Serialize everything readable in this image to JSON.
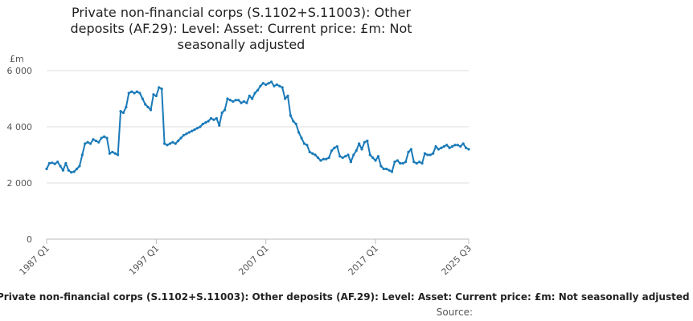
{
  "chart_data": {
    "type": "line",
    "title_lines": [
      "Private non-financial corps (S.1102+S.11003): Other",
      "deposits (AF.29): Level: Asset: Current price: £m: Not",
      "seasonally adjusted"
    ],
    "ylabel": "£m",
    "ylim": [
      0,
      6000
    ],
    "yticks": [
      0,
      2000,
      4000,
      6000
    ],
    "ytick_labels": [
      "0",
      "2 000",
      "4 000",
      "6 000"
    ],
    "xlim": [
      1987.0,
      2025.5
    ],
    "xticks": [
      1987.0,
      1997.0,
      2007.0,
      2017.0,
      2025.5
    ],
    "xtick_labels": [
      "1987 Q1",
      "1997 Q1",
      "2007 Q1",
      "2017 Q1",
      "2025 Q3"
    ],
    "grid": true,
    "legend": "bottom",
    "series": [
      {
        "name": "Private non-financial corps (S.1102+S.11003): Other deposits (AF.29): Level: Asset: Current price: £m: Not seasonally adjusted",
        "color": "#1a7ab8",
        "points": [
          [
            1987.0,
            2500
          ],
          [
            1987.25,
            2700
          ],
          [
            1987.5,
            2720
          ],
          [
            1987.75,
            2680
          ],
          [
            1988.0,
            2750
          ],
          [
            1988.25,
            2600
          ],
          [
            1988.5,
            2450
          ],
          [
            1988.75,
            2700
          ],
          [
            1989.0,
            2450
          ],
          [
            1989.25,
            2380
          ],
          [
            1989.5,
            2400
          ],
          [
            1989.75,
            2500
          ],
          [
            1990.0,
            2600
          ],
          [
            1990.25,
            3000
          ],
          [
            1990.5,
            3400
          ],
          [
            1990.75,
            3450
          ],
          [
            1991.0,
            3400
          ],
          [
            1991.25,
            3550
          ],
          [
            1991.5,
            3500
          ],
          [
            1991.75,
            3450
          ],
          [
            1992.0,
            3600
          ],
          [
            1992.25,
            3650
          ],
          [
            1992.5,
            3600
          ],
          [
            1992.75,
            3050
          ],
          [
            1993.0,
            3100
          ],
          [
            1993.25,
            3050
          ],
          [
            1993.5,
            3000
          ],
          [
            1993.75,
            4550
          ],
          [
            1994.0,
            4500
          ],
          [
            1994.25,
            4700
          ],
          [
            1994.5,
            5200
          ],
          [
            1994.75,
            5250
          ],
          [
            1995.0,
            5200
          ],
          [
            1995.25,
            5250
          ],
          [
            1995.5,
            5200
          ],
          [
            1995.75,
            5000
          ],
          [
            1996.0,
            4800
          ],
          [
            1996.25,
            4700
          ],
          [
            1996.5,
            4600
          ],
          [
            1996.75,
            5150
          ],
          [
            1997.0,
            5100
          ],
          [
            1997.25,
            5400
          ],
          [
            1997.5,
            5350
          ],
          [
            1997.75,
            3400
          ],
          [
            1998.0,
            3350
          ],
          [
            1998.25,
            3400
          ],
          [
            1998.5,
            3450
          ],
          [
            1998.75,
            3400
          ],
          [
            1999.0,
            3500
          ],
          [
            1999.25,
            3600
          ],
          [
            1999.5,
            3700
          ],
          [
            1999.75,
            3750
          ],
          [
            2000.0,
            3800
          ],
          [
            2000.25,
            3850
          ],
          [
            2000.5,
            3900
          ],
          [
            2000.75,
            3950
          ],
          [
            2001.0,
            4000
          ],
          [
            2001.25,
            4100
          ],
          [
            2001.5,
            4150
          ],
          [
            2001.75,
            4200
          ],
          [
            2002.0,
            4300
          ],
          [
            2002.25,
            4250
          ],
          [
            2002.5,
            4300
          ],
          [
            2002.75,
            4050
          ],
          [
            2003.0,
            4500
          ],
          [
            2003.25,
            4600
          ],
          [
            2003.5,
            5000
          ],
          [
            2003.75,
            4950
          ],
          [
            2004.0,
            4900
          ],
          [
            2004.25,
            4950
          ],
          [
            2004.5,
            4950
          ],
          [
            2004.75,
            4850
          ],
          [
            2005.0,
            4900
          ],
          [
            2005.25,
            4850
          ],
          [
            2005.5,
            5100
          ],
          [
            2005.75,
            5000
          ],
          [
            2006.0,
            5200
          ],
          [
            2006.25,
            5300
          ],
          [
            2006.5,
            5450
          ],
          [
            2006.75,
            5550
          ],
          [
            2007.0,
            5500
          ],
          [
            2007.25,
            5550
          ],
          [
            2007.5,
            5600
          ],
          [
            2007.75,
            5450
          ],
          [
            2008.0,
            5500
          ],
          [
            2008.25,
            5450
          ],
          [
            2008.5,
            5400
          ],
          [
            2008.75,
            5000
          ],
          [
            2009.0,
            5100
          ],
          [
            2009.25,
            4400
          ],
          [
            2009.5,
            4200
          ],
          [
            2009.75,
            4100
          ],
          [
            2010.0,
            3800
          ],
          [
            2010.25,
            3600
          ],
          [
            2010.5,
            3400
          ],
          [
            2010.75,
            3350
          ],
          [
            2011.0,
            3100
          ],
          [
            2011.25,
            3050
          ],
          [
            2011.5,
            3000
          ],
          [
            2011.75,
            2900
          ],
          [
            2012.0,
            2800
          ],
          [
            2012.25,
            2850
          ],
          [
            2012.5,
            2850
          ],
          [
            2012.75,
            2900
          ],
          [
            2013.0,
            3150
          ],
          [
            2013.25,
            3250
          ],
          [
            2013.5,
            3300
          ],
          [
            2013.75,
            2950
          ],
          [
            2014.0,
            2900
          ],
          [
            2014.25,
            2950
          ],
          [
            2014.5,
            3000
          ],
          [
            2014.75,
            2750
          ],
          [
            2015.0,
            3000
          ],
          [
            2015.25,
            3150
          ],
          [
            2015.5,
            3400
          ],
          [
            2015.75,
            3200
          ],
          [
            2016.0,
            3450
          ],
          [
            2016.25,
            3500
          ],
          [
            2016.5,
            3000
          ],
          [
            2016.75,
            2900
          ],
          [
            2017.0,
            2800
          ],
          [
            2017.25,
            2950
          ],
          [
            2017.5,
            2600
          ],
          [
            2017.75,
            2500
          ],
          [
            2018.0,
            2500
          ],
          [
            2018.25,
            2450
          ],
          [
            2018.5,
            2400
          ],
          [
            2018.75,
            2750
          ],
          [
            2019.0,
            2800
          ],
          [
            2019.25,
            2700
          ],
          [
            2019.5,
            2700
          ],
          [
            2019.75,
            2750
          ],
          [
            2020.0,
            3100
          ],
          [
            2020.25,
            3200
          ],
          [
            2020.5,
            2750
          ],
          [
            2020.75,
            2700
          ],
          [
            2021.0,
            2750
          ],
          [
            2021.25,
            2700
          ],
          [
            2021.5,
            3050
          ],
          [
            2021.75,
            3000
          ],
          [
            2022.0,
            3000
          ],
          [
            2022.25,
            3050
          ],
          [
            2022.5,
            3300
          ],
          [
            2022.75,
            3200
          ],
          [
            2023.0,
            3250
          ],
          [
            2023.25,
            3300
          ],
          [
            2023.5,
            3350
          ],
          [
            2023.75,
            3250
          ],
          [
            2024.0,
            3300
          ],
          [
            2024.25,
            3350
          ],
          [
            2024.5,
            3350
          ],
          [
            2024.75,
            3300
          ],
          [
            2025.0,
            3400
          ],
          [
            2025.25,
            3250
          ],
          [
            2025.5,
            3200
          ]
        ]
      }
    ],
    "source_label": "Source:"
  }
}
